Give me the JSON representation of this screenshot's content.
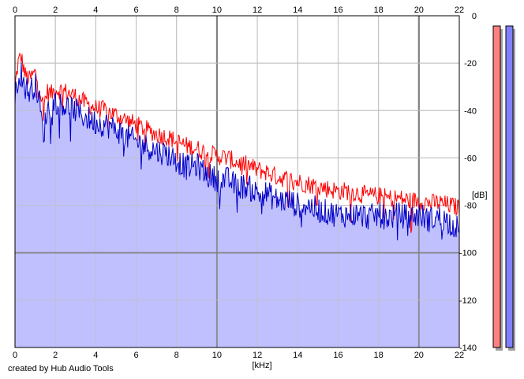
{
  "credit": "created by Hub Audio Tools",
  "colors": {
    "background": "#ffffff",
    "fill": "#c0c0ff",
    "grid": "#c0c0c0",
    "grid_major": "#808080",
    "left_channel": "#ff0000",
    "right_channel": "#0000c8",
    "meter_left": "#ff8080",
    "meter_right": "#8080ff"
  },
  "chart_data": {
    "type": "line",
    "title": "",
    "xlabel": "[kHz]",
    "ylabel": "[dB]",
    "xlim": [
      0,
      22
    ],
    "ylim": [
      -140,
      0
    ],
    "x_ticks": [
      "0",
      "2",
      "4",
      "6",
      "8",
      "10",
      "12",
      "14",
      "16",
      "18",
      "20",
      "22"
    ],
    "y_ticks": [
      "0",
      "-20",
      "-40",
      "-60",
      "-80",
      "-100",
      "-120",
      "-140"
    ],
    "x_tick_values": [
      0,
      2,
      4,
      6,
      8,
      10,
      12,
      14,
      16,
      18,
      20,
      22
    ],
    "y_tick_values": [
      0,
      -20,
      -40,
      -60,
      -80,
      -100,
      -120,
      -140
    ],
    "grid": true,
    "x": [
      0.0,
      0.15,
      0.3,
      0.5,
      0.7,
      1.0,
      1.2,
      1.4,
      1.6,
      1.8,
      2.0,
      2.5,
      3.0,
      3.5,
      4.0,
      4.5,
      5.0,
      5.5,
      6.0,
      6.5,
      7.0,
      7.5,
      8.0,
      8.5,
      9.0,
      9.5,
      10.0,
      10.5,
      11.0,
      11.5,
      12.0,
      12.5,
      13.0,
      13.5,
      14.0,
      14.5,
      15.0,
      15.5,
      16.0,
      16.5,
      17.0,
      17.5,
      18.0,
      18.5,
      19.0,
      19.5,
      20.0,
      20.5,
      21.0,
      21.5,
      22.0
    ],
    "series": [
      {
        "channel": "left",
        "color": "#ff0000",
        "values": [
          -30,
          -20,
          -17,
          -25,
          -27,
          -24,
          -30,
          -38,
          -32,
          -33,
          -31,
          -32,
          -34,
          -37,
          -39,
          -40,
          -42,
          -44,
          -46,
          -48,
          -50,
          -51,
          -53,
          -55,
          -56,
          -58,
          -59,
          -60,
          -62,
          -63,
          -65,
          -66,
          -68,
          -69,
          -70,
          -71,
          -72,
          -73,
          -74,
          -74,
          -75,
          -76,
          -76,
          -77,
          -77,
          -78,
          -78,
          -79,
          -79,
          -80,
          -81
        ]
      },
      {
        "channel": "right",
        "color": "#0000c8",
        "values": [
          -35,
          -26,
          -24,
          -30,
          -32,
          -29,
          -35,
          -51,
          -39,
          -39,
          -36,
          -38,
          -40,
          -43,
          -45,
          -46,
          -48,
          -51,
          -53,
          -55,
          -57,
          -58,
          -61,
          -64,
          -63,
          -67,
          -69,
          -69,
          -72,
          -72,
          -75,
          -75,
          -78,
          -78,
          -80,
          -80,
          -82,
          -83,
          -84,
          -84,
          -84,
          -85,
          -84,
          -85,
          -84,
          -85,
          -84,
          -86,
          -85,
          -87,
          -90
        ]
      }
    ],
    "meters": {
      "left": 1.0,
      "right": 1.0
    }
  }
}
